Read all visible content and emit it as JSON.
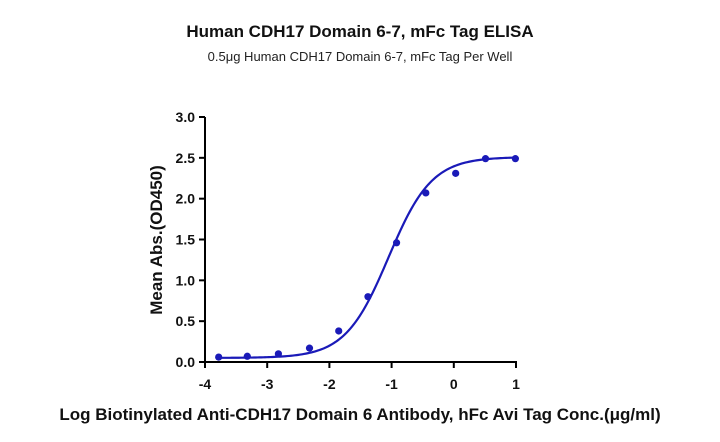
{
  "chart_data": {
    "type": "scatter",
    "title": "Human CDH17 Domain 6-7, mFc Tag ELISA",
    "subtitle": "0.5μg Human CDH17 Domain 6-7, mFc Tag Per Well",
    "xlabel": "Log Biotinylated Anti-CDH17 Domain 6 Antibody, hFc Avi Tag Conc.(μg/ml)",
    "ylabel": "Mean Abs.(OD450)",
    "xlim": [
      -4,
      1
    ],
    "ylim": [
      0,
      3.0
    ],
    "x_ticks": [
      "-4",
      "-3",
      "-2",
      "-1",
      "0",
      "1"
    ],
    "y_ticks": [
      "0.0",
      "0.5",
      "1.0",
      "1.5",
      "2.0",
      "2.5",
      "3.0"
    ],
    "grid": false,
    "series": [
      {
        "x": [
          -3.78,
          -3.32,
          -2.82,
          -2.32,
          -1.85,
          -1.38,
          -0.92,
          -0.45,
          0.03,
          0.51,
          0.99
        ],
        "y": [
          0.06,
          0.07,
          0.1,
          0.17,
          0.38,
          0.8,
          1.46,
          2.07,
          2.31,
          2.49,
          2.49
        ],
        "color": "#1a1ab8",
        "fit": {
          "model": "4PL",
          "bottom": 0.05,
          "top": 2.51,
          "logEC50": -1.05,
          "hill": 1.25
        }
      }
    ]
  }
}
